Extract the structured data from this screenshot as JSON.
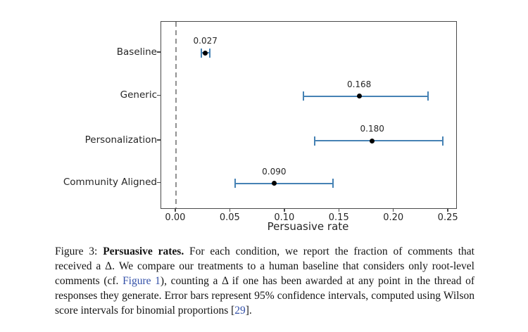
{
  "chart_data": {
    "type": "scatter",
    "subtype": "horizontal-dot-with-error-bars",
    "categories": [
      "Baseline",
      "Generic",
      "Personalization",
      "Community Aligned"
    ],
    "values": [
      0.027,
      0.168,
      0.18,
      0.09
    ],
    "value_labels": [
      "0.027",
      "0.168",
      "0.180",
      "0.090"
    ],
    "ci_low": [
      0.023,
      0.117,
      0.127,
      0.054
    ],
    "ci_high": [
      0.031,
      0.231,
      0.245,
      0.144
    ],
    "xlabel": "Persuasive rate",
    "x_tick_labels": [
      "0.00",
      "0.05",
      "0.10",
      "0.15",
      "0.20",
      "0.25"
    ],
    "x_tick_values": [
      0,
      0.05,
      0.1,
      0.15,
      0.2,
      0.25
    ],
    "xlim": [
      -0.0135,
      0.257
    ],
    "reference_line_x": 0,
    "grid": false,
    "legend": "none",
    "colors": {
      "errorbar": "#4682b4",
      "point": "#000000",
      "reference_line": "#919191",
      "axis": "#4a4a4a",
      "text": "#262626",
      "link": "#3350a8"
    }
  },
  "caption": {
    "segments": [
      {
        "text": "Figure 3: ",
        "style": "normal"
      },
      {
        "text": "Persuasive rates.",
        "style": "bold"
      },
      {
        "text": " For each condition, we report the fraction of comments that received a Δ. We compare our treatments to a human baseline that considers only root-level comments (cf. ",
        "style": "normal"
      },
      {
        "text": "Figure 1",
        "style": "link"
      },
      {
        "text": "), counting a Δ if one has been awarded at any point in the thread of responses they generate. Error bars represent 95% confidence intervals, computed using Wilson score intervals for binomial proportions [",
        "style": "normal"
      },
      {
        "text": "29",
        "style": "link"
      },
      {
        "text": "].",
        "style": "normal"
      }
    ]
  }
}
